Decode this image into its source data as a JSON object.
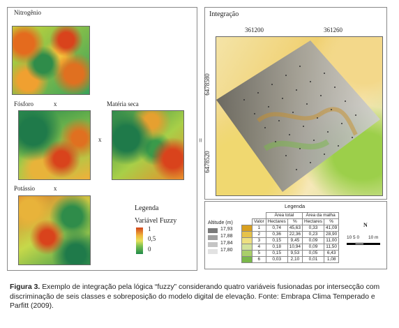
{
  "left_panel": {
    "nitrogen_label": "Nitrogênio",
    "phosphorus_label": "Fósforo",
    "dry_matter_label": "Matéria seca",
    "potassium_label": "Potássio",
    "times_symbol": "x",
    "equals_symbol": "=",
    "legend_title": "Legenda",
    "legend_subtitle": "Variável Fuzzy",
    "legend_values": [
      "1",
      "0,5",
      "0"
    ]
  },
  "right_panel": {
    "title": "Integração",
    "x_ticks": [
      "361200",
      "361260"
    ],
    "y_ticks": [
      "6478580",
      "6478520"
    ],
    "legend_title": "Legenda",
    "altitude_label": "Altitude (m)",
    "altitude_values": [
      "17,93",
      "17,88",
      "17,84",
      "17,80"
    ],
    "table": {
      "group_headers": [
        "Área total",
        "Área da malha"
      ],
      "col_headers": [
        "Valor",
        "Hectares",
        "%",
        "Hectares",
        "%"
      ],
      "rows": [
        [
          "1",
          "0,74",
          "45,63",
          "0,33",
          "41,09"
        ],
        [
          "2",
          "0,36",
          "22,36",
          "0,23",
          "28,90"
        ],
        [
          "3",
          "0,15",
          "9,45",
          "0,09",
          "11,00"
        ],
        [
          "4",
          "0,18",
          "10,94",
          "0,09",
          "11,50"
        ],
        [
          "5",
          "0,15",
          "9,53",
          "0,05",
          "6,43"
        ],
        [
          "6",
          "0,03",
          "2,10",
          "0,01",
          "1,08"
        ]
      ],
      "row_colors": [
        "#d8a020",
        "#e6c24a",
        "#eee080",
        "#d2e29a",
        "#a9cf6a",
        "#7ab84a"
      ]
    },
    "scale_label": "10 5 0",
    "scale_unit": "10 m",
    "north_symbol": "N"
  },
  "caption": {
    "label": "Figura 3.",
    "text": " Exemplo de integração pela lógica “fuzzy” considerando quatro variáveis fusionadas por intersecção com discriminação de seis classes e sobreposição do modelo digital de elevação. Fonte: Embrapa Clima Temperado e Parfitt (2009)."
  }
}
